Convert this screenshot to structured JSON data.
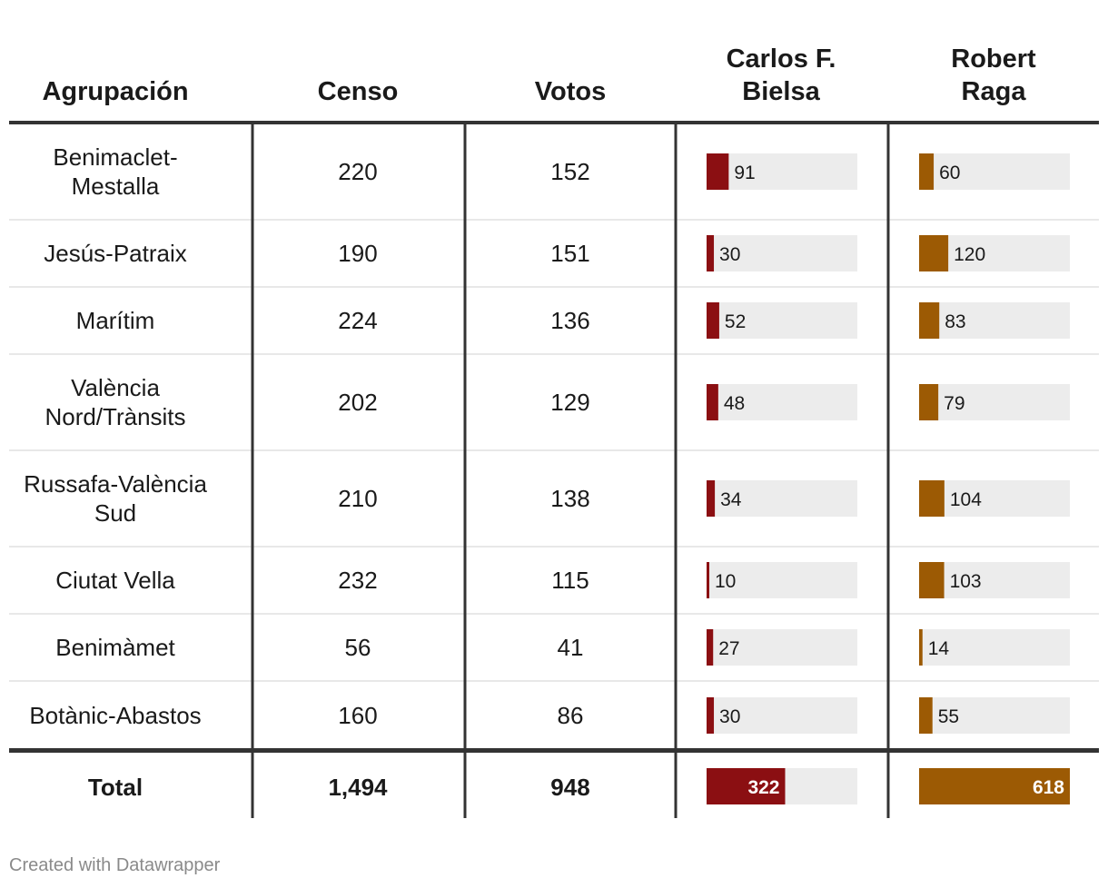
{
  "chart_data": {
    "type": "table",
    "columns": [
      "Agrupación",
      "Censo",
      "Votos",
      "Carlos F. Bielsa",
      "Robert Raga"
    ],
    "header_lines": [
      [
        "Agrupación"
      ],
      [
        "Censo"
      ],
      [
        "Votos"
      ],
      [
        "Carlos F.",
        "Bielsa"
      ],
      [
        "Robert",
        "Raga"
      ]
    ],
    "rows": [
      {
        "agrupacion": [
          "Benimaclet-",
          "Mestalla"
        ],
        "censo": "220",
        "votos": "152",
        "bielsa": 91,
        "raga": 60
      },
      {
        "agrupacion": [
          "Jesús-Patraix"
        ],
        "censo": "190",
        "votos": "151",
        "bielsa": 30,
        "raga": 120
      },
      {
        "agrupacion": [
          "Marítim"
        ],
        "censo": "224",
        "votos": "136",
        "bielsa": 52,
        "raga": 83
      },
      {
        "agrupacion": [
          "València",
          "Nord/Trànsits"
        ],
        "censo": "202",
        "votos": "129",
        "bielsa": 48,
        "raga": 79
      },
      {
        "agrupacion": [
          "Russafa-València",
          "Sud"
        ],
        "censo": "210",
        "votos": "138",
        "bielsa": 34,
        "raga": 104
      },
      {
        "agrupacion": [
          "Ciutat Vella"
        ],
        "censo": "232",
        "votos": "115",
        "bielsa": 10,
        "raga": 103
      },
      {
        "agrupacion": [
          "Benimàmet"
        ],
        "censo": "56",
        "votos": "41",
        "bielsa": 27,
        "raga": 14
      },
      {
        "agrupacion": [
          "Botànic-Abastos"
        ],
        "censo": "160",
        "votos": "86",
        "bielsa": 30,
        "raga": 55
      }
    ],
    "total": {
      "agrupacion": "Total",
      "censo": "1,494",
      "votos": "948",
      "bielsa": 322,
      "raga": 618
    },
    "bar_max_rows": 620,
    "bar_max_total": 618,
    "colors": {
      "bielsa": "#8b0f12",
      "raga": "#9c5a04",
      "track": "#ececec",
      "rule": "#333333",
      "divider": "#e8e8e8"
    }
  },
  "footer": "Created with Datawrapper"
}
